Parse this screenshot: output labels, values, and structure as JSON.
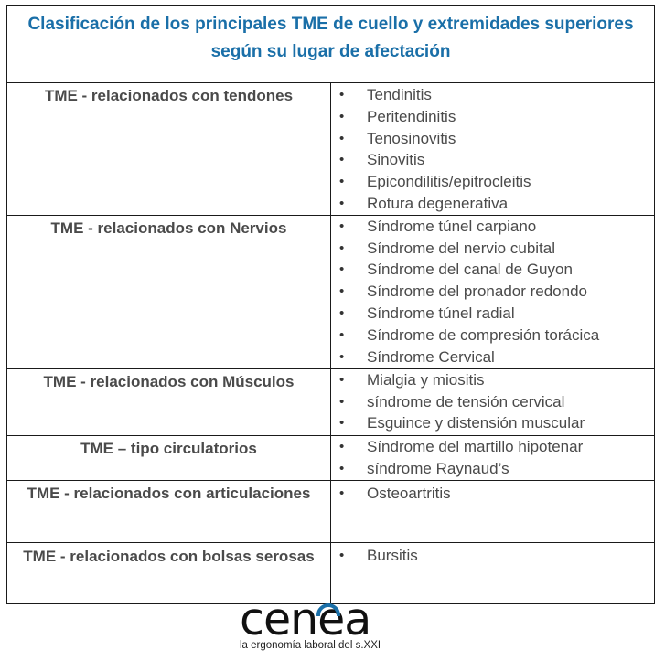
{
  "title": "Clasificación de los principales TME de cuello y extremidades superiores según su lugar de afectación",
  "rows": [
    {
      "category": "TME - relacionados con tendones",
      "items": [
        "Tendinitis",
        "Peritendinitis",
        "Tenosinovitis",
        "Sinovitis",
        "Epicondilitis/epitrocleitis",
        "Rotura degenerativa"
      ]
    },
    {
      "category": "TME - relacionados con Nervios",
      "items": [
        "Síndrome túnel carpiano",
        "Síndrome del nervio cubital",
        "Síndrome del canal de Guyon",
        "Síndrome del pronador redondo",
        "Síndrome túnel radial",
        "Síndrome de compresión torácica",
        "Síndrome Cervical"
      ]
    },
    {
      "category": "TME - relacionados con Músculos",
      "items": [
        "Mialgia y miositis",
        "síndrome de tensión cervical",
        "Esguince y distensión muscular"
      ]
    },
    {
      "category": "TME – tipo circulatorios",
      "items": [
        "Síndrome del martillo hipotenar",
        "síndrome Raynaud’s"
      ]
    },
    {
      "category": "TME - relacionados con articulaciones",
      "items": [
        "Osteoartritis"
      ]
    },
    {
      "category": "TME - relacionados con bolsas serosas",
      "items": [
        "Bursitis"
      ]
    }
  ],
  "logo": {
    "wordmark": "cenea",
    "tagline": "la ergonomía laboral del s.XXI",
    "arc_color": "#1a6fa8"
  }
}
